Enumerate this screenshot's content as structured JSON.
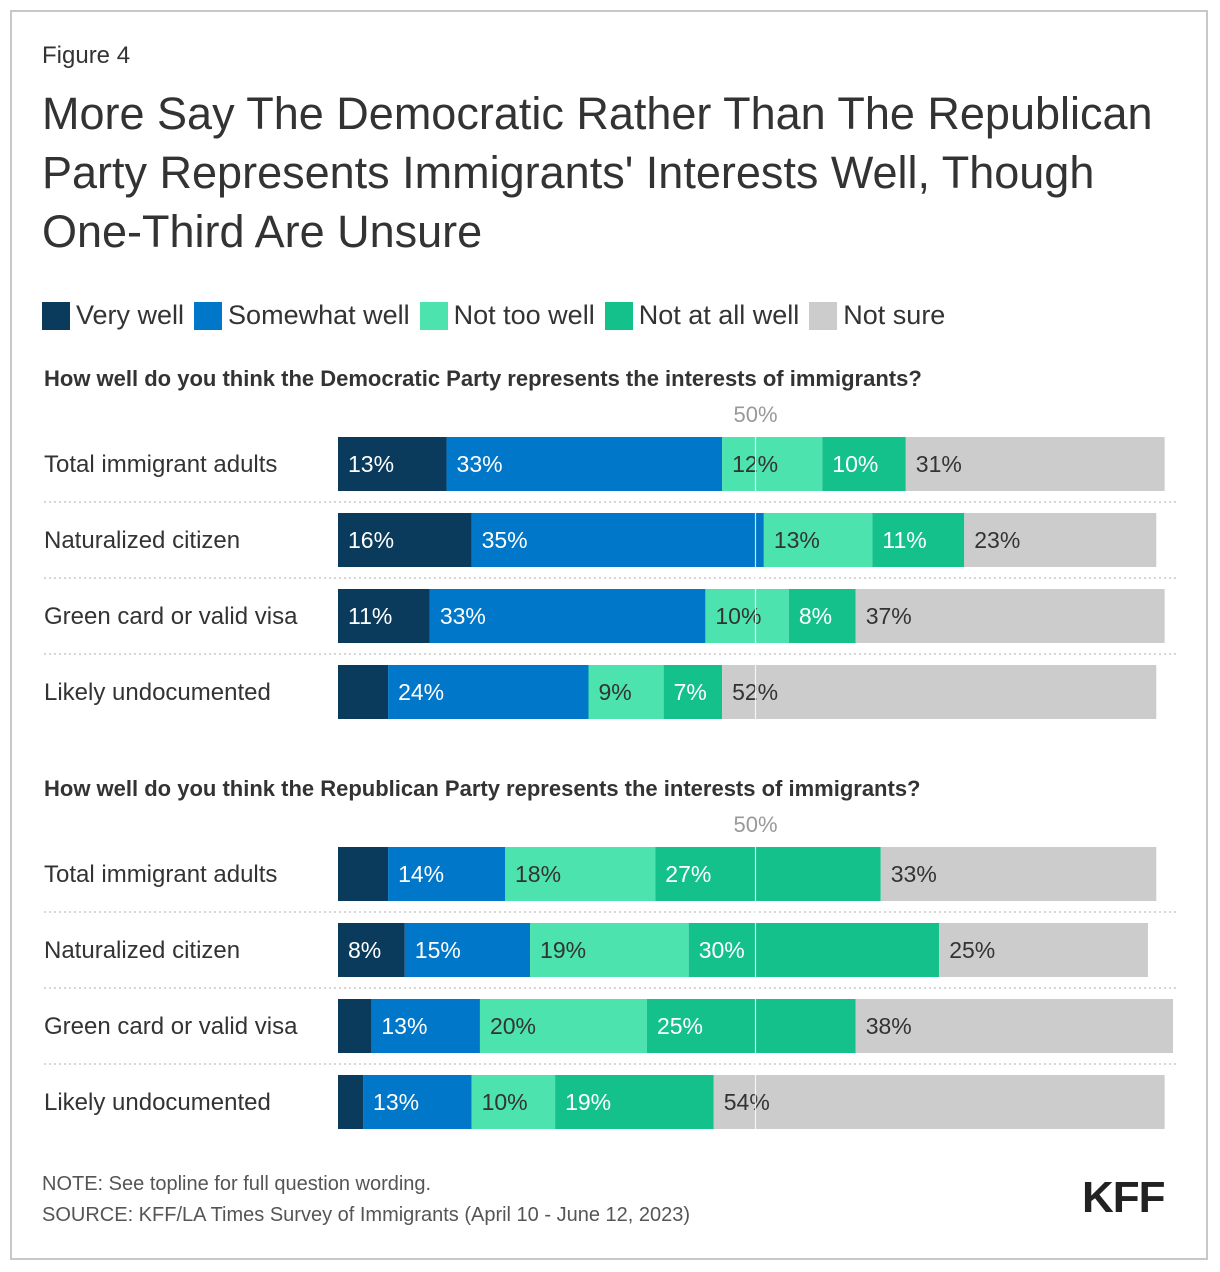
{
  "figure_label": "Figure 4",
  "title": "More Say The Democratic Rather Than The Republican Party Represents Immigrants' Interests Well, Though One-Third Are Unsure",
  "legend": [
    {
      "label": "Very well",
      "color": "#0a3a5c"
    },
    {
      "label": "Somewhat well",
      "color": "#0077c8"
    },
    {
      "label": "Not too well",
      "color": "#4de3ae"
    },
    {
      "label": "Not at all well",
      "color": "#14c18b"
    },
    {
      "label": "Not sure",
      "color": "#cccccc"
    }
  ],
  "note": "NOTE: See topline for full question wording.",
  "source": "SOURCE: KFF/LA Times Survey of Immigrants (April 10 - June 12, 2023)",
  "logo": "KFF",
  "chart_data": [
    {
      "type": "bar",
      "stacked": true,
      "orientation": "horizontal",
      "title": "How well do you think the Democratic Party represents the interests of immigrants?",
      "reference_label": "50%",
      "reference_value": 50,
      "categories": [
        "Total immigrant adults",
        "Naturalized citizen",
        "Green card or valid visa",
        "Likely undocumented"
      ],
      "series": [
        {
          "name": "Very well",
          "values": [
            13,
            16,
            11,
            6
          ],
          "labels": [
            "13%",
            "16%",
            "11%",
            ""
          ]
        },
        {
          "name": "Somewhat well",
          "values": [
            33,
            35,
            33,
            24
          ],
          "labels": [
            "33%",
            "35%",
            "33%",
            "24%"
          ]
        },
        {
          "name": "Not too well",
          "values": [
            12,
            13,
            10,
            9
          ],
          "labels": [
            "12%",
            "13%",
            "10%",
            "9%"
          ]
        },
        {
          "name": "Not at all well",
          "values": [
            10,
            11,
            8,
            7
          ],
          "labels": [
            "10%",
            "11%",
            "8%",
            "7%"
          ]
        },
        {
          "name": "Not sure",
          "values": [
            31,
            23,
            37,
            52
          ],
          "labels": [
            "31%",
            "23%",
            "37%",
            "52%"
          ]
        }
      ]
    },
    {
      "type": "bar",
      "stacked": true,
      "orientation": "horizontal",
      "title": "How well do you think the Republican Party represents the interests of immigrants?",
      "reference_label": "50%",
      "reference_value": 50,
      "categories": [
        "Total immigrant adults",
        "Naturalized citizen",
        "Green card or valid visa",
        "Likely undocumented"
      ],
      "series": [
        {
          "name": "Very well",
          "values": [
            6,
            8,
            4,
            3
          ],
          "labels": [
            "",
            "8%",
            "",
            ""
          ]
        },
        {
          "name": "Somewhat well",
          "values": [
            14,
            15,
            13,
            13
          ],
          "labels": [
            "14%",
            "15%",
            "13%",
            "13%"
          ]
        },
        {
          "name": "Not too well",
          "values": [
            18,
            19,
            20,
            10
          ],
          "labels": [
            "18%",
            "19%",
            "20%",
            "10%"
          ]
        },
        {
          "name": "Not at all well",
          "values": [
            27,
            30,
            25,
            19
          ],
          "labels": [
            "27%",
            "30%",
            "25%",
            "19%"
          ]
        },
        {
          "name": "Not sure",
          "values": [
            33,
            25,
            38,
            54
          ],
          "labels": [
            "33%",
            "25%",
            "38%",
            "54%"
          ]
        }
      ]
    }
  ]
}
